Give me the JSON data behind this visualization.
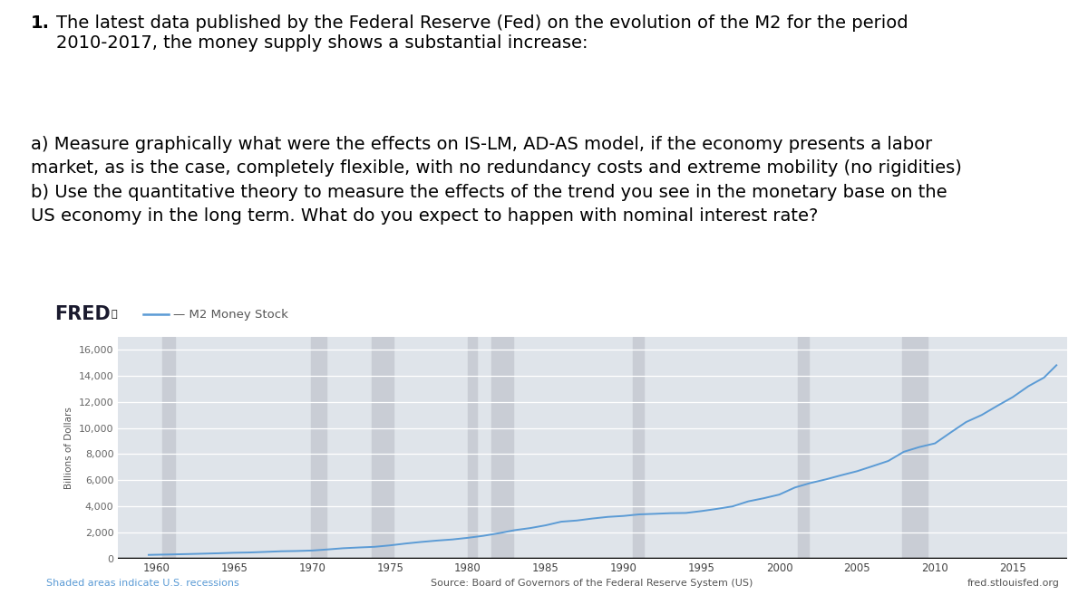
{
  "title_bold": "1.",
  "title_rest": " The latest data published by the Federal Reserve (Fed) on the evolution of the M2 for the period\n2010-2017, the money supply shows a substantial increase:",
  "body_text": "a) Measure graphically what were the effects on IS-LM, AD-AS model, if the economy presents a labor\nmarket, as is the case, completely flexible, with no redundancy costs and extreme mobility (no rigidities)\nb) Use the quantitative theory to measure the effects of the trend you see in the monetary base on the\nUS economy in the long term. What do you expect to happen with nominal interest rate?",
  "fred_label": "FRED",
  "legend_line_label": "— M2 Money Stock",
  "ylabel": "Billions of Dollars",
  "source_text": "Source: Board of Governors of the Federal Reserve System (US)",
  "recession_text": "Shaded areas indicate U.S. recessions",
  "website_text": "fred.stlouisfed.org",
  "chart_bg": "#dfe4ea",
  "recession_color": "#c9cdd5",
  "line_color": "#5b9bd5",
  "ytick_color": "#666666",
  "xtick_color": "#444444",
  "yticks": [
    0,
    2000,
    4000,
    6000,
    8000,
    10000,
    12000,
    14000,
    16000
  ],
  "xticks": [
    1960,
    1965,
    1970,
    1975,
    1980,
    1985,
    1990,
    1995,
    2000,
    2005,
    2010,
    2015
  ],
  "xlim": [
    1957.5,
    2018.5
  ],
  "ylim": [
    0,
    17000
  ],
  "recession_periods": [
    [
      1960.4,
      1961.2
    ],
    [
      1969.9,
      1970.9
    ],
    [
      1973.8,
      1975.2
    ],
    [
      1980.0,
      1980.6
    ],
    [
      1981.5,
      1982.9
    ],
    [
      1990.6,
      1991.3
    ],
    [
      2001.2,
      2001.9
    ],
    [
      2007.9,
      2009.5
    ]
  ],
  "m2_years": [
    1959.5,
    1960,
    1961,
    1962,
    1963,
    1964,
    1965,
    1966,
    1967,
    1968,
    1969,
    1970,
    1971,
    1972,
    1973,
    1974,
    1975,
    1976,
    1977,
    1978,
    1979,
    1980,
    1981,
    1982,
    1983,
    1984,
    1985,
    1986,
    1987,
    1988,
    1989,
    1990,
    1991,
    1992,
    1993,
    1994,
    1995,
    1996,
    1997,
    1998,
    1999,
    2000,
    2001,
    2002,
    2003,
    2004,
    2005,
    2006,
    2007,
    2008,
    2009,
    2010,
    2011,
    2012,
    2013,
    2014,
    2015,
    2016,
    2017,
    2017.8
  ],
  "m2_values": [
    295,
    308,
    330,
    358,
    388,
    420,
    459,
    480,
    524,
    572,
    592,
    628,
    712,
    805,
    862,
    912,
    1023,
    1163,
    1284,
    1388,
    1474,
    1601,
    1756,
    1954,
    2185,
    2345,
    2558,
    2834,
    2924,
    3076,
    3202,
    3274,
    3393,
    3436,
    3484,
    3502,
    3645,
    3815,
    4004,
    4387,
    4627,
    4907,
    5447,
    5793,
    6073,
    6393,
    6696,
    7083,
    7479,
    8181,
    8544,
    8824,
    9650,
    10455,
    10994,
    11694,
    12366,
    13196,
    13853,
    14800
  ]
}
